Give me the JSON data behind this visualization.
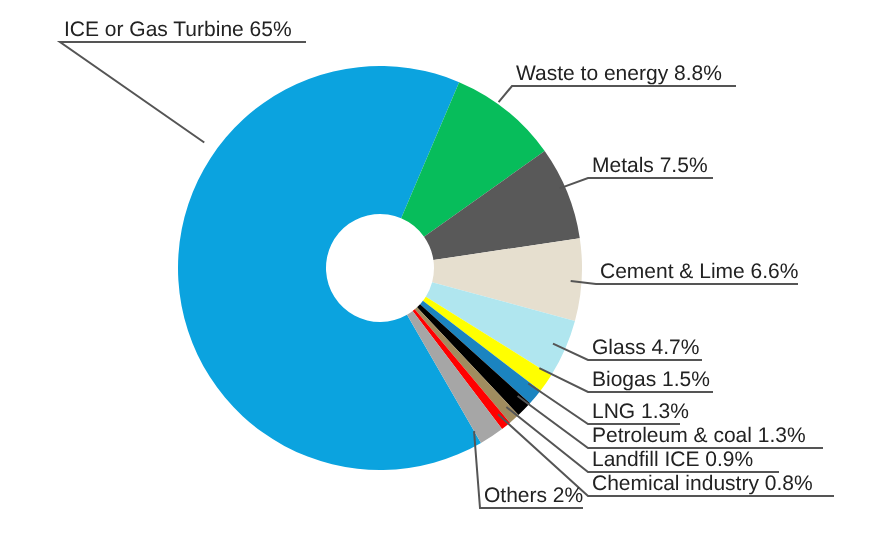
{
  "chart_data": {
    "type": "donut",
    "categories": [
      "ICE or Gas Turbine",
      "Waste to energy",
      "Metals",
      "Cement & Lime",
      "Glass",
      "Biogas",
      "LNG",
      "Petroleum & coal",
      "Landfill ICE",
      "Chemical industry",
      "Others"
    ],
    "values": [
      65,
      8.8,
      7.5,
      6.6,
      4.7,
      1.5,
      1.3,
      1.3,
      0.9,
      0.8,
      2
    ],
    "value_labels": [
      "65%",
      "8.8%",
      "7.5%",
      "6.6%",
      "4.7%",
      "1.5%",
      "1.3%",
      "1.3%",
      "0.9%",
      "0.8%",
      "2%"
    ],
    "colors": [
      "#0ba3df",
      "#07bd5b",
      "#595959",
      "#e6dfcf",
      "#b0e6ef",
      "#ffff00",
      "#1b84c0",
      "#000000",
      "#a08c5f",
      "#ff0000",
      "#a6a6a6"
    ],
    "legend": false
  }
}
